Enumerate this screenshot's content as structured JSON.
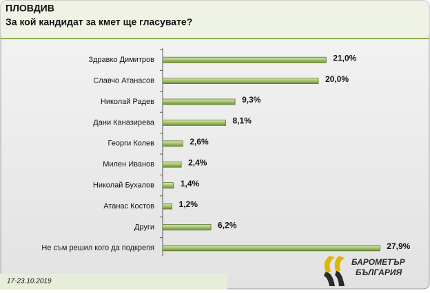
{
  "chart_data": {
    "type": "bar",
    "orientation": "horizontal",
    "title": "ПЛОВДИВ",
    "subtitle": "За кой кандидат за кмет ще гласувате?",
    "categories": [
      "Здравко Димитров",
      "Славчо Атанасов",
      "Николай Радев",
      "Дани Каназирева",
      "Георги Колев",
      "Милен Иванов",
      "Николай Бухалов",
      "Атанас Костов",
      "Други",
      "Не съм решил кого да подкрепя"
    ],
    "values": [
      21.0,
      20.0,
      9.3,
      8.1,
      2.6,
      2.4,
      1.4,
      1.2,
      6.2,
      27.9
    ],
    "value_labels": [
      "21,0%",
      "20,0%",
      "9,3%",
      "8,1%",
      "2,6%",
      "2,4%",
      "1,4%",
      "1,2%",
      "6,2%",
      "27,9%"
    ],
    "color": "#a4c46a",
    "xlim": [
      0,
      30
    ],
    "date": "17-23.10.2019",
    "logo": [
      "БАРОМЕТЪР",
      "БЪЛГАРИЯ"
    ]
  }
}
